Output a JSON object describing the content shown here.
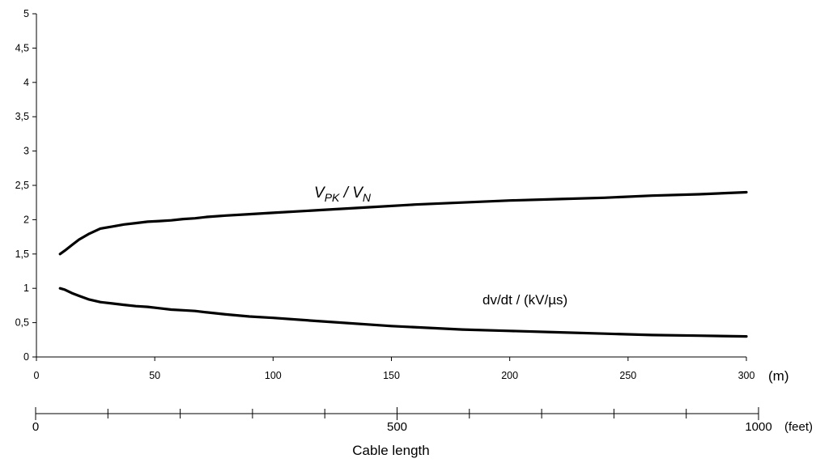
{
  "chart_data": {
    "type": "line",
    "title": "",
    "xlabel": "Cable length",
    "x_unit": "(m)",
    "ylabel": "",
    "xlim": [
      0,
      300
    ],
    "ylim": [
      0,
      5
    ],
    "x_ticks": [
      "0",
      "50",
      "100",
      "150",
      "200",
      "250",
      "300"
    ],
    "y_ticks": [
      "0",
      "0,5",
      "1",
      "1,5",
      "2",
      "2,5",
      "3",
      "3,5",
      "4",
      "4,5",
      "5"
    ],
    "secondary_x_axis": {
      "unit": "(feet)",
      "range": [
        0,
        1000
      ],
      "tick_labels": [
        {
          "value": 0,
          "label": "0"
        },
        {
          "value": 500,
          "label": "500"
        },
        {
          "value": 1000,
          "label": "1000"
        }
      ],
      "minor_ticks": [
        100,
        200,
        300,
        400,
        600,
        700,
        800,
        900
      ]
    },
    "grid": false,
    "series": [
      {
        "name": "V_PK / V_N",
        "label_main": "V",
        "label_sub1": "PK",
        "label_sep": " / V",
        "label_sub2": "N",
        "x": [
          10,
          12,
          15,
          18,
          22,
          27,
          32,
          37,
          42,
          47,
          52,
          57,
          62,
          67,
          72,
          80,
          90,
          100,
          120,
          140,
          160,
          180,
          200,
          220,
          240,
          260,
          280,
          300
        ],
        "y": [
          1.5,
          1.55,
          1.63,
          1.71,
          1.79,
          1.87,
          1.9,
          1.93,
          1.95,
          1.97,
          1.98,
          1.99,
          2.01,
          2.02,
          2.04,
          2.06,
          2.08,
          2.1,
          2.14,
          2.18,
          2.22,
          2.25,
          2.28,
          2.3,
          2.32,
          2.35,
          2.37,
          2.4
        ]
      },
      {
        "name": "dv/dt / (kV/µs)",
        "x": [
          10,
          12,
          15,
          18,
          22,
          27,
          32,
          37,
          42,
          47,
          52,
          57,
          62,
          67,
          72,
          80,
          90,
          100,
          120,
          150,
          180,
          200,
          220,
          240,
          260,
          280,
          300
        ],
        "y": [
          1.0,
          0.98,
          0.93,
          0.89,
          0.84,
          0.8,
          0.78,
          0.76,
          0.74,
          0.73,
          0.71,
          0.69,
          0.68,
          0.67,
          0.65,
          0.62,
          0.59,
          0.57,
          0.52,
          0.45,
          0.4,
          0.38,
          0.36,
          0.34,
          0.32,
          0.31,
          0.3
        ]
      }
    ]
  }
}
